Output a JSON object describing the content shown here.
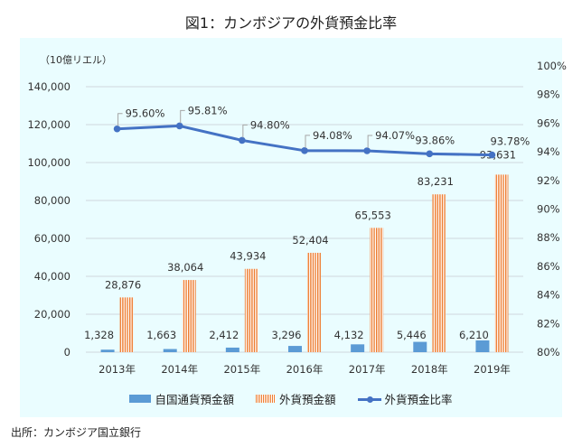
{
  "title": "図1：カンボジアの外貨預金比率",
  "source": "出所：カンボジア国立銀行",
  "colors": {
    "domestic": "#5b9bd5",
    "foreign": "#ed7d31",
    "ratio": "#4472c4",
    "grid": "#d0d7dc",
    "plot_bg": "#eafdff"
  },
  "chart_data": {
    "type": "bar",
    "title": "図1：カンボジアの外貨預金比率",
    "unit_label": "（10億リエル）",
    "categories": [
      "2013年",
      "2014年",
      "2015年",
      "2016年",
      "2017年",
      "2018年",
      "2019年"
    ],
    "series": [
      {
        "name": "自国通貨預金額",
        "type": "bar",
        "axis": "left",
        "values": [
          1328,
          1663,
          2412,
          3296,
          4132,
          5446,
          6210
        ],
        "labels": [
          "1,328",
          "1,663",
          "2,412",
          "3,296",
          "4,132",
          "5,446",
          "6,210"
        ]
      },
      {
        "name": "外貨預金額",
        "type": "bar",
        "axis": "left",
        "pattern": "vertical-stripes",
        "values": [
          28876,
          38064,
          43934,
          52404,
          65553,
          83231,
          93631
        ],
        "labels": [
          "28,876",
          "38,064",
          "43,934",
          "52,404",
          "65,553",
          "83,231",
          "93,631"
        ]
      },
      {
        "name": "外貨預金比率",
        "type": "line",
        "axis": "right",
        "values": [
          95.6,
          95.81,
          94.8,
          94.08,
          94.07,
          93.86,
          93.78
        ],
        "labels": [
          "95.60%",
          "95.81%",
          "94.80%",
          "94.08%",
          "94.07%",
          "93.86%",
          "93.78%"
        ]
      }
    ],
    "left_axis": {
      "ylim": [
        0,
        140000
      ],
      "ticks": [
        0,
        20000,
        40000,
        60000,
        80000,
        100000,
        120000,
        140000
      ],
      "tick_labels": [
        "0",
        "20,000",
        "40,000",
        "60,000",
        "80,000",
        "100,000",
        "120,000",
        "140,000"
      ]
    },
    "right_axis": {
      "ylim": [
        80,
        100
      ],
      "ticks": [
        80,
        82,
        84,
        86,
        88,
        90,
        92,
        94,
        96,
        98,
        100
      ],
      "tick_labels": [
        "80%",
        "82%",
        "84%",
        "86%",
        "88%",
        "90%",
        "92%",
        "94%",
        "96%",
        "98%",
        "100%"
      ]
    },
    "grid": true,
    "legend_position": "bottom"
  },
  "legend": [
    {
      "label": "自国通貨預金額",
      "icon": "blue-bar-swatch"
    },
    {
      "label": "外貨預金額",
      "icon": "orange-striped-swatch"
    },
    {
      "label": "外貨預金比率",
      "icon": "line-marker-swatch"
    }
  ]
}
